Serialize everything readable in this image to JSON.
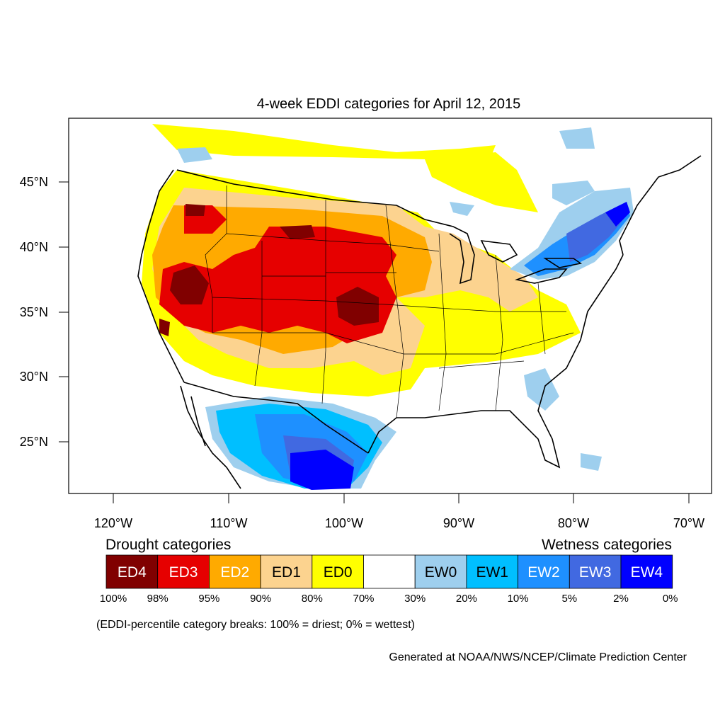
{
  "title": "4-week EDDI categories for April 12, 2015",
  "lat_labels": [
    "45°N",
    "40°N",
    "35°N",
    "30°N",
    "25°N"
  ],
  "lon_labels": [
    "120°W",
    "110°W",
    "100°W",
    "90°W",
    "80°W",
    "70°W"
  ],
  "legend": {
    "drought_heading": "Drought categories",
    "wetness_heading": "Wetness categories",
    "categories": [
      {
        "label": "ED4",
        "color": "#800000",
        "text_color": "#ffffff"
      },
      {
        "label": "ED3",
        "color": "#e60000",
        "text_color": "#ffffff"
      },
      {
        "label": "ED2",
        "color": "#ffaa00",
        "text_color": "#ffffff"
      },
      {
        "label": "ED1",
        "color": "#fcd38f",
        "text_color": "#000000"
      },
      {
        "label": "ED0",
        "color": "#ffff00",
        "text_color": "#000000"
      },
      {
        "label": "",
        "color": "#ffffff",
        "text_color": "#000000"
      },
      {
        "label": "EW0",
        "color": "#9ecfee",
        "text_color": "#000000"
      },
      {
        "label": "EW1",
        "color": "#00bfff",
        "text_color": "#000000"
      },
      {
        "label": "EW2",
        "color": "#1e90ff",
        "text_color": "#ffffff"
      },
      {
        "label": "EW3",
        "color": "#4169e1",
        "text_color": "#ffffff"
      },
      {
        "label": "EW4",
        "color": "#0000ff",
        "text_color": "#ffffff"
      }
    ],
    "percent_breaks": [
      "100%",
      "98%",
      "95%",
      "90%",
      "80%",
      "70%",
      "30%",
      "20%",
      "10%",
      "5%",
      "2%",
      "0%"
    ]
  },
  "note": "(EDDI-percentile category breaks: 100% = driest; 0% = wettest)",
  "credit": "Generated at NOAA/NWS/NCEP/Climate Prediction Center"
}
